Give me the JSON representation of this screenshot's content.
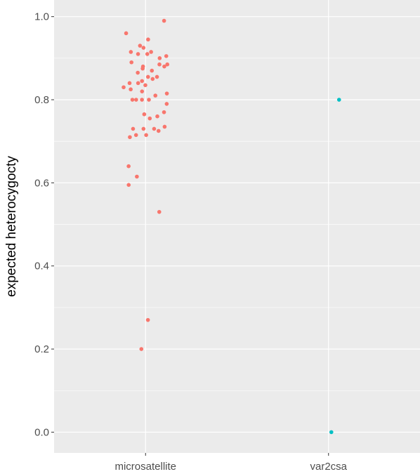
{
  "chart_data": {
    "type": "scatter",
    "title": "",
    "xlabel": "",
    "ylabel": "expected heterocygocty",
    "categories": [
      "microsatellite",
      "var2csa"
    ],
    "ylim": [
      -0.05,
      1.04
    ],
    "y_ticks": [
      0.0,
      0.2,
      0.4,
      0.6,
      0.8,
      1.0
    ],
    "y_tick_labels": [
      "0.0",
      "0.2",
      "0.4",
      "0.6",
      "0.8",
      "1.0"
    ],
    "grid": true,
    "legend": "none",
    "colors": {
      "panel": "#ebebeb",
      "grid": "#ffffff",
      "microsatellite": "#f8766d",
      "var2csa": "#00bfc4"
    },
    "series": [
      {
        "category": "microsatellite",
        "y": [
          0.99,
          0.96,
          0.945,
          0.93,
          0.925,
          0.915,
          0.915,
          0.91,
          0.91,
          0.905,
          0.9,
          0.89,
          0.885,
          0.885,
          0.88,
          0.88,
          0.875,
          0.87,
          0.865,
          0.855,
          0.855,
          0.85,
          0.845,
          0.84,
          0.84,
          0.835,
          0.83,
          0.825,
          0.82,
          0.815,
          0.81,
          0.8,
          0.8,
          0.8,
          0.8,
          0.79,
          0.77,
          0.765,
          0.76,
          0.755,
          0.735,
          0.73,
          0.73,
          0.73,
          0.725,
          0.715,
          0.715,
          0.71,
          0.64,
          0.615,
          0.595,
          0.53,
          0.27,
          0.2
        ]
      },
      {
        "category": "var2csa",
        "y": [
          0.8,
          0.0
        ]
      }
    ]
  }
}
